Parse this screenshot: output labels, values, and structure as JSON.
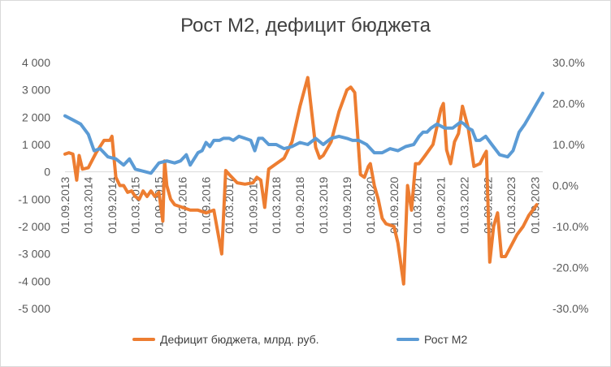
{
  "chart_data": {
    "type": "line",
    "title": "Рост М2, дефицит бюджета",
    "x_tick_labels": [
      "01.09.2013",
      "01.03.2014",
      "01.09.2014",
      "01.03.2015",
      "01.09.2015",
      "01.03.2016",
      "01.09.2016",
      "01.03.2017",
      "01.09.2017",
      "01.03.2018",
      "01.09.2018",
      "01.03.2019",
      "01.09.2019",
      "01.03.2020",
      "01.09.2020",
      "01.03.2021",
      "01.09.2021",
      "01.03.2022",
      "01.09.2022",
      "01.03.2023",
      "01.09.2023"
    ],
    "y_left": {
      "ticks": [
        "4 000",
        "3 000",
        "2 000",
        "1 000",
        "0",
        "-1 000",
        "-2 000",
        "-3 000",
        "-4 000",
        "-5 000"
      ],
      "lim": [
        -5000,
        4000
      ]
    },
    "y_right": {
      "ticks": [
        "30.0%",
        "20.0%",
        "10.0%",
        "0.0%",
        "-10.0%",
        "-20.0%",
        "-30.0%"
      ],
      "lim": [
        -30,
        30
      ]
    },
    "grid": false,
    "legend_position": "bottom",
    "colors": {
      "deficit": "#ed7d31",
      "m2": "#5b9bd5"
    },
    "series": [
      {
        "name": "Дефицит бюджета, млрд. руб.",
        "axis": "left",
        "points": [
          [
            "2013-09-01",
            650
          ],
          [
            "2013-10-01",
            700
          ],
          [
            "2013-11-01",
            650
          ],
          [
            "2013-12-01",
            -300
          ],
          [
            "2013-12-20",
            600
          ],
          [
            "2014-01-15",
            100
          ],
          [
            "2014-03-01",
            150
          ],
          [
            "2014-05-01",
            700
          ],
          [
            "2014-07-01",
            1150
          ],
          [
            "2014-08-15",
            1150
          ],
          [
            "2014-09-01",
            1300
          ],
          [
            "2014-10-01",
            -200
          ],
          [
            "2014-11-01",
            -500
          ],
          [
            "2014-12-01",
            -500
          ],
          [
            "2015-01-01",
            -750
          ],
          [
            "2015-02-01",
            -700
          ],
          [
            "2015-03-01",
            -900
          ],
          [
            "2015-04-01",
            -1000
          ],
          [
            "2015-05-01",
            -700
          ],
          [
            "2015-06-01",
            -900
          ],
          [
            "2015-07-01",
            -700
          ],
          [
            "2015-08-01",
            -900
          ],
          [
            "2015-09-01",
            -750
          ],
          [
            "2015-10-01",
            -1800
          ],
          [
            "2015-10-15",
            400
          ],
          [
            "2015-11-01",
            -500
          ],
          [
            "2015-12-01",
            -1000
          ],
          [
            "2016-01-01",
            -1200
          ],
          [
            "2016-03-01",
            -1300
          ],
          [
            "2016-05-01",
            -1400
          ],
          [
            "2016-07-01",
            -1400
          ],
          [
            "2016-09-01",
            -1500
          ],
          [
            "2016-11-01",
            -1400
          ],
          [
            "2017-01-01",
            -3000
          ],
          [
            "2017-02-01",
            50
          ],
          [
            "2017-03-01",
            -100
          ],
          [
            "2017-05-01",
            -400
          ],
          [
            "2017-07-01",
            -450
          ],
          [
            "2017-09-01",
            -400
          ],
          [
            "2017-10-01",
            -200
          ],
          [
            "2017-11-01",
            -300
          ],
          [
            "2017-12-01",
            -1300
          ],
          [
            "2018-01-01",
            100
          ],
          [
            "2018-03-01",
            300
          ],
          [
            "2018-05-01",
            500
          ],
          [
            "2018-07-01",
            1100
          ],
          [
            "2018-09-01",
            2400
          ],
          [
            "2018-11-01",
            3450
          ],
          [
            "2019-01-01",
            900
          ],
          [
            "2019-02-01",
            500
          ],
          [
            "2019-03-01",
            600
          ],
          [
            "2019-05-01",
            1100
          ],
          [
            "2019-07-01",
            2200
          ],
          [
            "2019-09-01",
            3000
          ],
          [
            "2019-10-01",
            3100
          ],
          [
            "2019-11-01",
            2900
          ],
          [
            "2019-12-15",
            -100
          ],
          [
            "2020-01-15",
            -200
          ],
          [
            "2020-02-15",
            200
          ],
          [
            "2020-03-01",
            300
          ],
          [
            "2020-04-01",
            -500
          ],
          [
            "2020-05-01",
            -1000
          ],
          [
            "2020-06-01",
            -1700
          ],
          [
            "2020-07-01",
            -1900
          ],
          [
            "2020-09-01",
            -2000
          ],
          [
            "2020-10-01",
            -2600
          ],
          [
            "2020-11-15",
            -4100
          ],
          [
            "2020-12-15",
            -500
          ],
          [
            "2021-01-15",
            -1400
          ],
          [
            "2021-02-15",
            300
          ],
          [
            "2021-03-15",
            300
          ],
          [
            "2021-05-01",
            600
          ],
          [
            "2021-07-01",
            1000
          ],
          [
            "2021-09-01",
            2300
          ],
          [
            "2021-09-20",
            2500
          ],
          [
            "2021-10-15",
            800
          ],
          [
            "2021-11-15",
            300
          ],
          [
            "2021-12-15",
            1100
          ],
          [
            "2022-01-15",
            1400
          ],
          [
            "2022-02-15",
            2400
          ],
          [
            "2022-04-01",
            1600
          ],
          [
            "2022-05-15",
            200
          ],
          [
            "2022-07-01",
            300
          ],
          [
            "2022-08-01",
            600
          ],
          [
            "2022-08-20",
            750
          ],
          [
            "2022-09-15",
            -3300
          ],
          [
            "2022-10-15",
            -2000
          ],
          [
            "2022-11-15",
            -1500
          ],
          [
            "2022-12-15",
            -3100
          ],
          [
            "2023-01-15",
            -3100
          ],
          [
            "2023-03-01",
            -2700
          ],
          [
            "2023-04-15",
            -2300
          ],
          [
            "2023-06-01",
            -2000
          ],
          [
            "2023-07-15",
            -1600
          ],
          [
            "2023-09-15",
            -1200
          ]
        ]
      },
      {
        "name": "Рост М2",
        "axis": "right",
        "points": [
          [
            "2013-09-01",
            17
          ],
          [
            "2013-11-01",
            16
          ],
          [
            "2014-01-01",
            15
          ],
          [
            "2014-03-01",
            12.5
          ],
          [
            "2014-04-15",
            8.5
          ],
          [
            "2014-06-01",
            9
          ],
          [
            "2014-08-01",
            7
          ],
          [
            "2014-10-01",
            6.5
          ],
          [
            "2014-12-01",
            5
          ],
          [
            "2015-01-15",
            6.5
          ],
          [
            "2015-03-01",
            4
          ],
          [
            "2015-05-01",
            3.5
          ],
          [
            "2015-07-01",
            3
          ],
          [
            "2015-09-01",
            5.5
          ],
          [
            "2015-11-01",
            6
          ],
          [
            "2016-01-01",
            5.5
          ],
          [
            "2016-02-15",
            6
          ],
          [
            "2016-04-01",
            7.5
          ],
          [
            "2016-05-01",
            5
          ],
          [
            "2016-07-01",
            8
          ],
          [
            "2016-08-01",
            8.5
          ],
          [
            "2016-09-01",
            10.5
          ],
          [
            "2016-10-01",
            9.5
          ],
          [
            "2016-11-01",
            11
          ],
          [
            "2016-12-15",
            11
          ],
          [
            "2017-01-15",
            11.5
          ],
          [
            "2017-03-01",
            11.5
          ],
          [
            "2017-04-01",
            11
          ],
          [
            "2017-05-15",
            12
          ],
          [
            "2017-07-01",
            11.5
          ],
          [
            "2017-08-15",
            11
          ],
          [
            "2017-09-15",
            8.5
          ],
          [
            "2017-10-15",
            11.5
          ],
          [
            "2017-11-15",
            11.5
          ],
          [
            "2018-01-01",
            10
          ],
          [
            "2018-03-01",
            10
          ],
          [
            "2018-05-01",
            9
          ],
          [
            "2018-07-01",
            9.5
          ],
          [
            "2018-09-01",
            10.5
          ],
          [
            "2018-11-01",
            10
          ],
          [
            "2019-01-01",
            11.5
          ],
          [
            "2019-03-01",
            10
          ],
          [
            "2019-05-01",
            11.5
          ],
          [
            "2019-07-01",
            12
          ],
          [
            "2019-09-01",
            11.5
          ],
          [
            "2019-10-15",
            11
          ],
          [
            "2019-12-01",
            11
          ],
          [
            "2020-02-01",
            10
          ],
          [
            "2020-04-01",
            8
          ],
          [
            "2020-06-01",
            8
          ],
          [
            "2020-08-01",
            9
          ],
          [
            "2020-10-01",
            8.5
          ],
          [
            "2020-12-01",
            9.5
          ],
          [
            "2021-02-01",
            10
          ],
          [
            "2021-03-15",
            12
          ],
          [
            "2021-04-15",
            13
          ],
          [
            "2021-05-15",
            13
          ],
          [
            "2021-06-15",
            14
          ],
          [
            "2021-08-01",
            15
          ],
          [
            "2021-10-01",
            14
          ],
          [
            "2021-12-01",
            14
          ],
          [
            "2022-02-01",
            15.5
          ],
          [
            "2022-03-01",
            15
          ],
          [
            "2022-04-01",
            14
          ],
          [
            "2022-05-01",
            13.5
          ],
          [
            "2022-06-01",
            11
          ],
          [
            "2022-07-01",
            11
          ],
          [
            "2022-08-15",
            12
          ],
          [
            "2022-10-01",
            10
          ],
          [
            "2022-12-01",
            7.5
          ],
          [
            "2023-02-01",
            7
          ],
          [
            "2023-03-15",
            8.5
          ],
          [
            "2023-05-01",
            13
          ],
          [
            "2023-06-15",
            15
          ],
          [
            "2023-08-01",
            17.5
          ],
          [
            "2023-09-15",
            20
          ],
          [
            "2023-11-01",
            22.5
          ]
        ]
      }
    ]
  }
}
